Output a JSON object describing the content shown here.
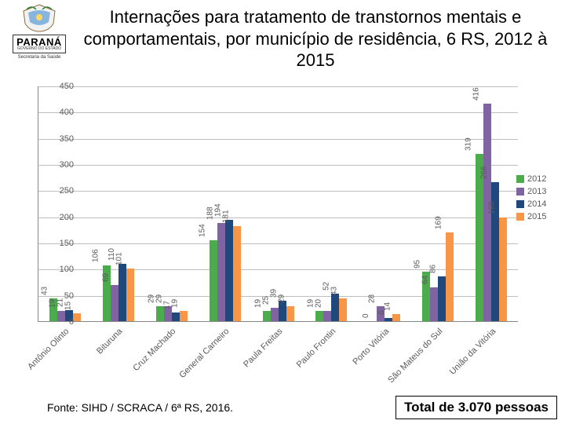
{
  "logo": {
    "parana": "PARANÁ",
    "gov": "GOVERNO DO ESTADO",
    "sec": "Secretaria da Saúde"
  },
  "title": "Internações para tratamento de transtornos mentais e comportamentais, por município de residência, 6 RS, 2012 à 2015",
  "chart": {
    "type": "bar",
    "ylim": [
      0,
      450
    ],
    "ytick_step": 50,
    "yticks": [
      0,
      50,
      100,
      150,
      200,
      250,
      300,
      350,
      400,
      450
    ],
    "grid_color": "#bfbfbf",
    "axis_color": "#888888",
    "tick_font_size": 11,
    "label_font_size": 10,
    "series": [
      {
        "name": "2012",
        "color": "#4bac4b"
      },
      {
        "name": "2013",
        "color": "#8064a2"
      },
      {
        "name": "2014",
        "color": "#1f497d"
      },
      {
        "name": "2015",
        "color": "#f79646"
      }
    ],
    "categories": [
      "Antônio Olinto",
      "Bituruna",
      "Cruz Machado",
      "General Carneiro",
      "Paula Freitas",
      "Paulo Frontin",
      "Porto Vitória",
      "São Mateus do Sul",
      "União da Vitória"
    ],
    "data": [
      [
        43,
        19,
        21,
        15
      ],
      [
        106,
        69,
        110,
        101
      ],
      [
        29,
        29,
        17,
        19
      ],
      [
        154,
        188,
        194,
        181
      ],
      [
        19,
        25,
        39,
        29
      ],
      [
        19,
        20,
        52,
        43
      ],
      [
        0,
        28,
        6,
        14
      ],
      [
        95,
        64,
        86,
        169
      ],
      [
        319,
        416,
        266,
        198
      ]
    ],
    "legend": [
      "2012",
      "2013",
      "2014",
      "2015"
    ]
  },
  "footer": {
    "source": "Fonte: SIHD / SCRACA / 6ª RS, 2016.",
    "total": "Total de 3.070 pessoas"
  }
}
